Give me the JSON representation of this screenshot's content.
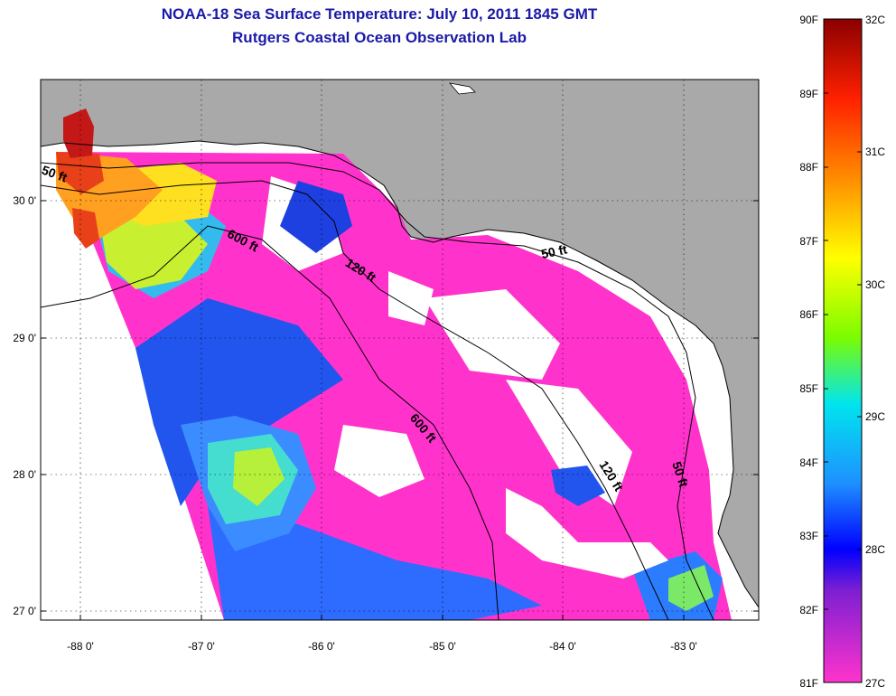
{
  "title": {
    "line1": "NOAA-18 Sea Surface Temperature:  July 10, 2011 1845 GMT",
    "line2": "Rutgers Coastal Ocean Observation Lab"
  },
  "map": {
    "lon_labels": [
      "-88 0'",
      "-87 0'",
      "-86 0'",
      "-85 0'",
      "-84 0'",
      "-83 0'"
    ],
    "lat_labels": [
      "30 0'",
      "29 0'",
      "28 0'",
      "27 0'"
    ],
    "contour_labels": [
      "50 ft",
      "600 ft",
      "120 ft",
      "50 ft",
      "600 ft",
      "120 ft",
      "50 ft"
    ],
    "colors": {
      "land": "#a9a9a9",
      "ocean_no_data": "#ffffff"
    }
  },
  "colorbar": {
    "f_labels": [
      "90F",
      "89F",
      "88F",
      "87F",
      "86F",
      "85F",
      "84F",
      "83F",
      "82F",
      "81F"
    ],
    "c_labels": [
      "32C",
      "31C",
      "30C",
      "29C",
      "28C",
      "27C"
    ],
    "range_f": [
      81,
      90
    ],
    "range_c": [
      27,
      32
    ]
  }
}
